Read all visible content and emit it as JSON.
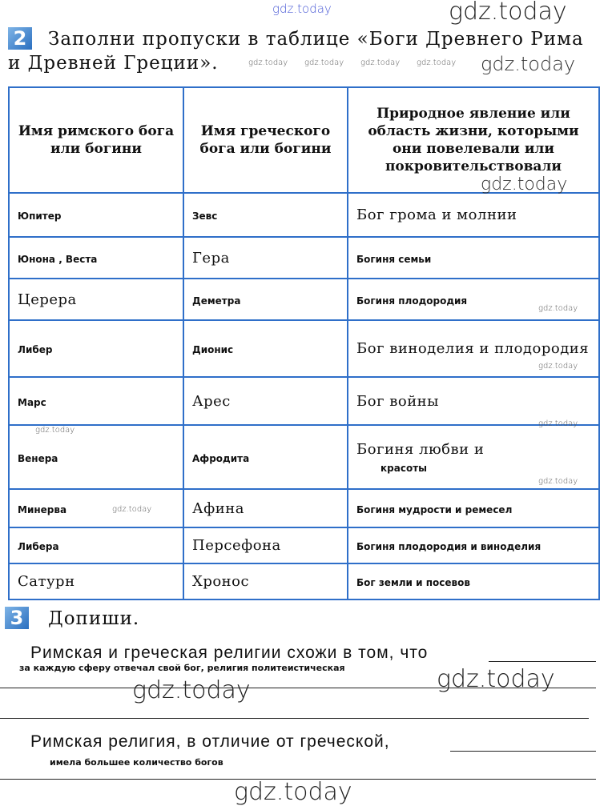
{
  "watermark": "gdz.today",
  "task2": {
    "number": "2",
    "text": "Заполни пропуски в таблице «Боги Древнего Рима и Древней Греции».",
    "headers": [
      "Имя римского бога или богини",
      "Имя греческого бога или богини",
      "Природное явление или область жизни, которыми они повелевали или покровительствовали"
    ],
    "rows": [
      {
        "roman": "Юпитер",
        "roman_style": "h",
        "greek": "Зевс",
        "greek_style": "h",
        "domain": "Бог грома и молнии",
        "domain_style": "p"
      },
      {
        "roman": "Юнона , Веста",
        "roman_style": "h",
        "greek": "Гера",
        "greek_style": "p",
        "domain": "Богиня семьи",
        "domain_style": "h"
      },
      {
        "roman": "Церера",
        "roman_style": "p",
        "greek": "Деметра",
        "greek_style": "h",
        "domain": "Богиня плодородия",
        "domain_style": "h"
      },
      {
        "roman": "Либер",
        "roman_style": "h",
        "greek": "Дионис",
        "greek_style": "h",
        "domain": "Бог виноделия и плодородия",
        "domain_style": "p"
      },
      {
        "roman": "Марс",
        "roman_style": "h",
        "greek": "Арес",
        "greek_style": "p",
        "domain": "Бог войны",
        "domain_style": "p"
      },
      {
        "roman": "Венера",
        "roman_style": "h",
        "greek": "Афродита",
        "greek_style": "h",
        "domain": "Богиня любви и",
        "domain_style": "p",
        "domain_extra": "красоты"
      },
      {
        "roman": "Минерва",
        "roman_style": "h",
        "greek": "Афина",
        "greek_style": "p",
        "domain": "Богиня мудрости и ремесел",
        "domain_style": "h"
      },
      {
        "roman": "Либера",
        "roman_style": "h",
        "greek": "Персефона",
        "greek_style": "p",
        "domain": "Богиня плодородия и виноделия",
        "domain_style": "h"
      },
      {
        "roman": "Сатурн",
        "roman_style": "p",
        "greek": "Хронос",
        "greek_style": "p",
        "domain": "Бог земли и посевов",
        "domain_style": "h"
      }
    ]
  },
  "task3": {
    "number": "3",
    "title": "Допиши.",
    "sentence1": "Римская и греческая религии схожи в том, что",
    "answer1": "за каждую сферу отвечал свой бог, религия политеистическая",
    "sentence2": "Римская религия, в отличие от греческой,",
    "answer2": "имела большее количество богов"
  },
  "colors": {
    "table_border": "#2f6fc9",
    "badge": "#2a6fc0",
    "top_watermark": "#4b5bd6"
  }
}
